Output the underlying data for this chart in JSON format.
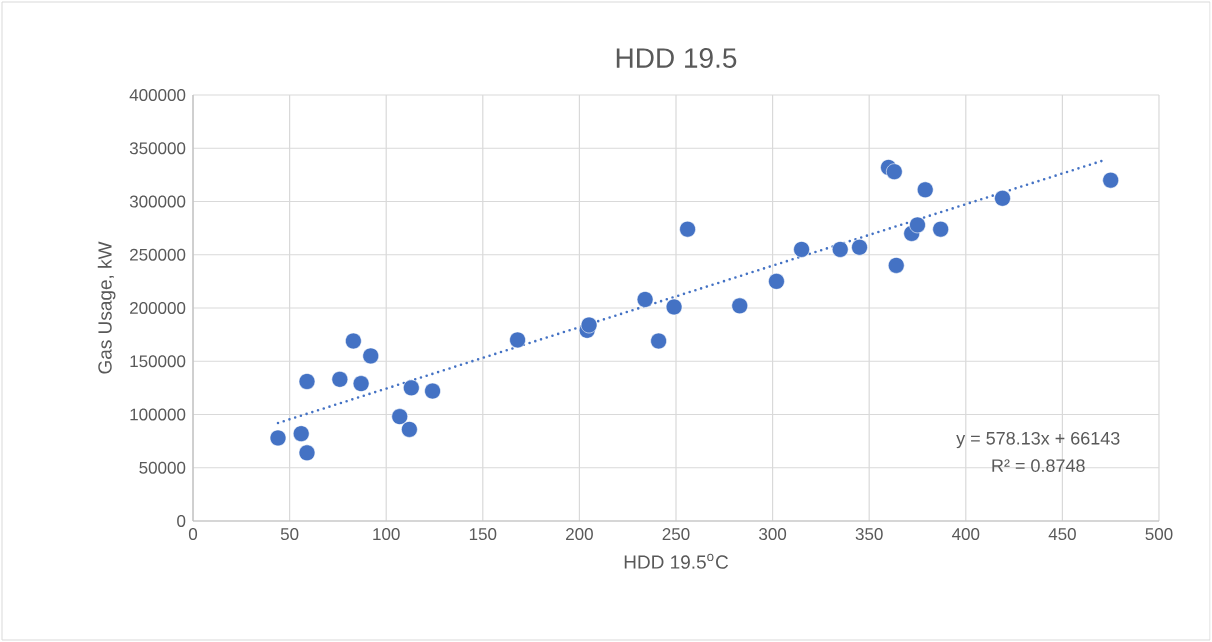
{
  "chart_data": {
    "type": "scatter",
    "title": "HDD 19.5",
    "xlabel": "HDD 19.5$^{o}$C",
    "ylabel": "Gas Usage, kW",
    "xlim": [
      0,
      500
    ],
    "xticks": [
      0,
      50,
      100,
      150,
      200,
      250,
      300,
      350,
      400,
      450,
      500
    ],
    "ylim": [
      0,
      400000
    ],
    "yticks": [
      0,
      50000,
      100000,
      150000,
      200000,
      250000,
      300000,
      350000,
      400000
    ],
    "grid": true,
    "annotations": [
      "y = 578.13x + 66143",
      "R² = 0.8748"
    ],
    "series": [
      {
        "color": "#4472c4",
        "marker": "circle",
        "x": [
          44,
          56,
          59,
          59,
          76,
          83,
          87,
          92,
          107,
          112,
          113,
          124,
          168,
          204,
          205,
          234,
          241,
          249,
          256,
          283,
          302,
          315,
          335,
          345,
          360,
          363,
          364,
          372,
          375,
          379,
          387,
          419,
          475
        ],
        "values": [
          78000,
          82000,
          64000,
          131000,
          133000,
          169000,
          129000,
          155000,
          98000,
          86000,
          125000,
          122000,
          170000,
          179000,
          184000,
          208000,
          169000,
          201000,
          274000,
          202000,
          225000,
          255000,
          255000,
          257000,
          332000,
          328000,
          240000,
          270000,
          278000,
          311000,
          274000,
          303000,
          320000
        ]
      },
      {
        "type": "line",
        "color": "#4472c4",
        "marker": "none",
        "line_style": "dotted",
        "x": [
          44,
          472
        ],
        "values": [
          92000,
          339000
        ]
      }
    ]
  }
}
